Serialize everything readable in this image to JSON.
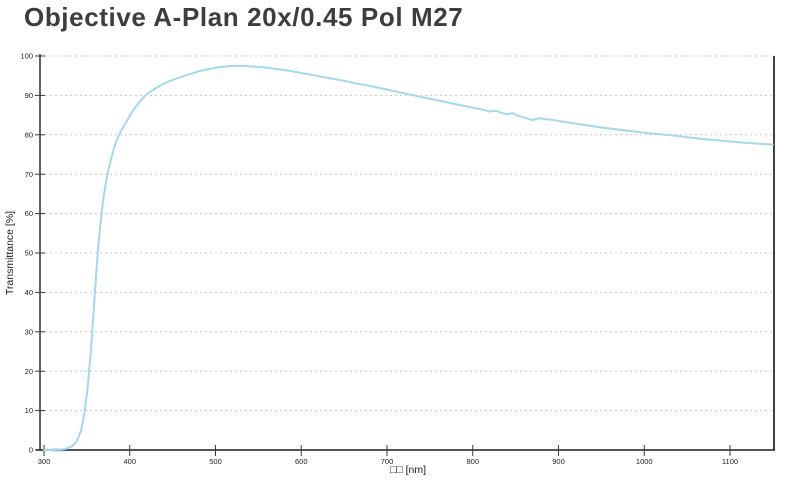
{
  "window": {
    "title": "Objective A-Plan 20x/0.45 Pol M27"
  },
  "chart_data": {
    "type": "line",
    "title": "Objective A-Plan 20x/0.45 Pol M27",
    "xlabel": "□□ [nm]",
    "ylabel": "Transmittance [%]",
    "xlim": [
      300,
      1150
    ],
    "ylim": [
      0,
      100
    ],
    "x_ticks": [
      300,
      400,
      500,
      600,
      700,
      800,
      900,
      1000,
      1100
    ],
    "y_ticks": [
      0,
      10,
      20,
      30,
      40,
      50,
      60,
      70,
      80,
      90,
      100
    ],
    "grid": "horizontal dashed",
    "legend": "none",
    "series": [
      {
        "name": "Transmittance",
        "color": "#a5d7f0",
        "points": [
          [
            300,
            0
          ],
          [
            312,
            0
          ],
          [
            320,
            0.1
          ],
          [
            327,
            0.4
          ],
          [
            333,
            1
          ],
          [
            338,
            2.2
          ],
          [
            343,
            4.8
          ],
          [
            347,
            9
          ],
          [
            351,
            16
          ],
          [
            355,
            26
          ],
          [
            359,
            39
          ],
          [
            363,
            51
          ],
          [
            367,
            60
          ],
          [
            371,
            66.5
          ],
          [
            375,
            71
          ],
          [
            379,
            74.5
          ],
          [
            383,
            77.5
          ],
          [
            387,
            79.8
          ],
          [
            391,
            81.4
          ],
          [
            395,
            82.9
          ],
          [
            400,
            84.8
          ],
          [
            405,
            86.5
          ],
          [
            410,
            88
          ],
          [
            415,
            89.2
          ],
          [
            420,
            90.3
          ],
          [
            425,
            91.1
          ],
          [
            430,
            91.8
          ],
          [
            435,
            92.4
          ],
          [
            440,
            93
          ],
          [
            445,
            93.5
          ],
          [
            450,
            93.9
          ],
          [
            460,
            94.7
          ],
          [
            470,
            95.4
          ],
          [
            480,
            96.1
          ],
          [
            490,
            96.6
          ],
          [
            500,
            97
          ],
          [
            510,
            97.3
          ],
          [
            520,
            97.5
          ],
          [
            533,
            97.5
          ],
          [
            546,
            97.3
          ],
          [
            560,
            97
          ],
          [
            575,
            96.6
          ],
          [
            590,
            96.1
          ],
          [
            605,
            95.5
          ],
          [
            620,
            94.9
          ],
          [
            635,
            94.3
          ],
          [
            650,
            93.7
          ],
          [
            665,
            93
          ],
          [
            680,
            92.4
          ],
          [
            700,
            91.5
          ],
          [
            720,
            90.5
          ],
          [
            740,
            89.6
          ],
          [
            760,
            88.7
          ],
          [
            780,
            87.8
          ],
          [
            800,
            86.9
          ],
          [
            812,
            86.4
          ],
          [
            820,
            85.9
          ],
          [
            827,
            86.1
          ],
          [
            833,
            85.6
          ],
          [
            840,
            85.2
          ],
          [
            846,
            85.5
          ],
          [
            852,
            84.9
          ],
          [
            858,
            84.5
          ],
          [
            864,
            84.1
          ],
          [
            870,
            83.7
          ],
          [
            874,
            84
          ],
          [
            880,
            84.2
          ],
          [
            886,
            83.9
          ],
          [
            893,
            83.8
          ],
          [
            900,
            83.5
          ],
          [
            915,
            83
          ],
          [
            930,
            82.5
          ],
          [
            945,
            82
          ],
          [
            960,
            81.6
          ],
          [
            975,
            81.2
          ],
          [
            990,
            80.8
          ],
          [
            1005,
            80.4
          ],
          [
            1020,
            80.1
          ],
          [
            1035,
            79.8
          ],
          [
            1050,
            79.4
          ],
          [
            1065,
            79
          ],
          [
            1080,
            78.7
          ],
          [
            1095,
            78.4
          ],
          [
            1110,
            78.1
          ],
          [
            1130,
            77.8
          ],
          [
            1150,
            77.5
          ]
        ]
      }
    ],
    "axis_overlap_segment_nm": [
      309,
      322
    ]
  },
  "colors": {
    "curve": "#a5d7f0",
    "curve_axis_overlap": "#2e7896",
    "grid": "#c6c6c6",
    "axis": "#3b3b3b",
    "right_border": "#2e2e2e",
    "title_text": "#3d3d3d",
    "background": "#ffffff"
  }
}
